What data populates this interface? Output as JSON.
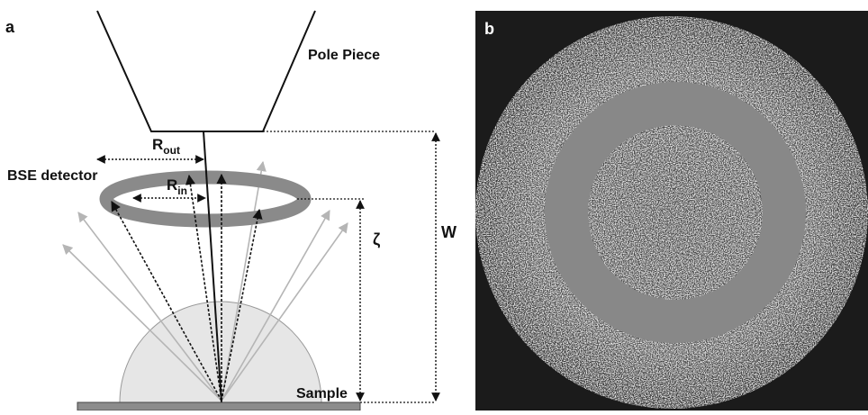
{
  "panel_a": {
    "letter": "a",
    "pole_piece": "Pole Piece",
    "bse_detector": "BSE detector",
    "r_out_main": "R",
    "r_out_sub": "out",
    "r_in_main": "R",
    "r_in_sub": "in",
    "zeta": "ζ",
    "w": "W",
    "sample": "Sample"
  },
  "panel_b": {
    "letter": "b"
  },
  "colors": {
    "ring": "#8a8a8a",
    "hemisphere_fill": "#e6e6e6",
    "sample_bar": "#8c8c8c",
    "light_arrow": "#b5b5b5",
    "dark_arrow": "#111111",
    "panel_b_background": "#1b1b1b",
    "panel_b_ring": "#888888"
  }
}
